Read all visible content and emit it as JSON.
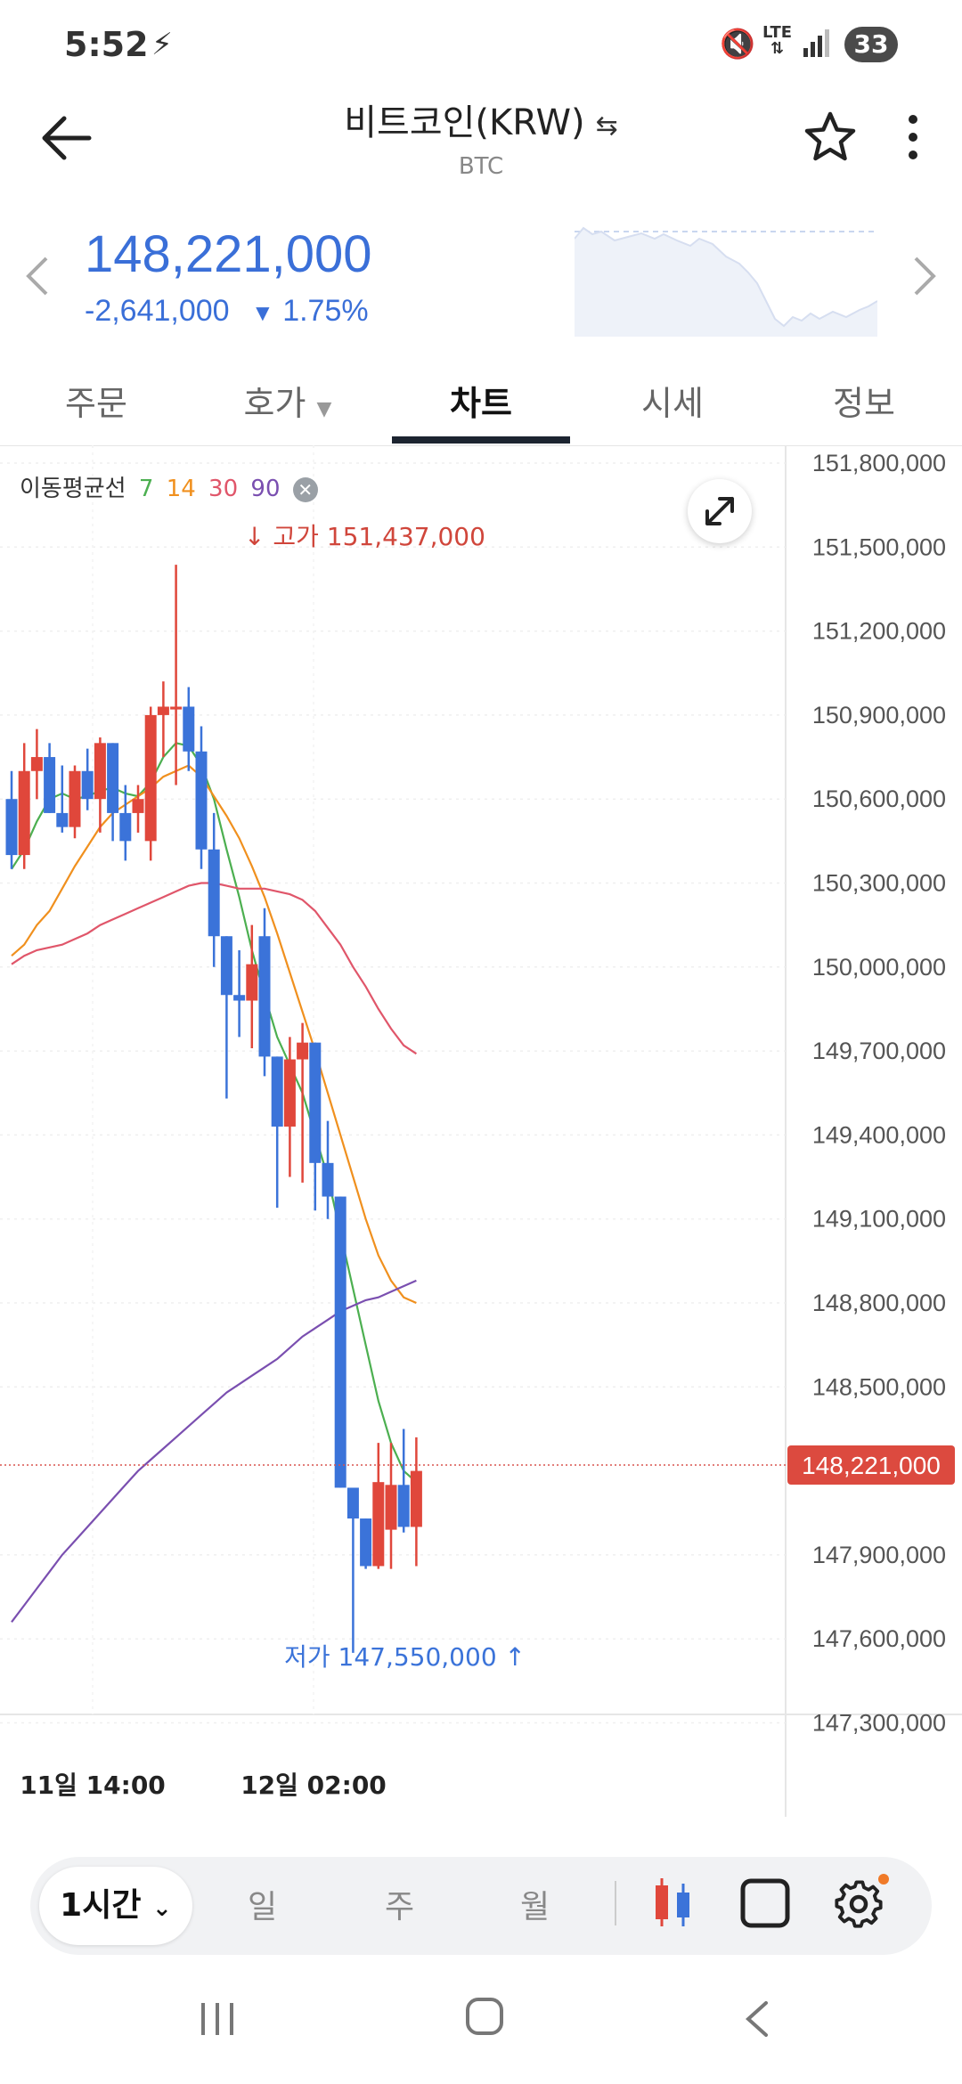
{
  "status_bar": {
    "time": "5:52",
    "network": "LTE",
    "battery": "33"
  },
  "header": {
    "title": "비트코인(KRW)",
    "subtitle": "BTC"
  },
  "price": {
    "current": "148,221,000",
    "change": "-2,641,000",
    "change_pct": "1.75%",
    "direction": "down",
    "color": "#3a6fd8"
  },
  "tabs": [
    {
      "label": "주문"
    },
    {
      "label": "호가"
    },
    {
      "label": "차트"
    },
    {
      "label": "시세"
    },
    {
      "label": "정보"
    }
  ],
  "active_tab": "차트",
  "chart": {
    "legend_label": "이동평균선",
    "ma_periods": [
      {
        "label": "7",
        "color": "#4caf50"
      },
      {
        "label": "14",
        "color": "#f0901e"
      },
      {
        "label": "30",
        "color": "#e0566a"
      },
      {
        "label": "90",
        "color": "#7a4fb0"
      }
    ],
    "high_label": "고가 151,437,000",
    "low_label": "저가 147,550,000",
    "current_price_label": "148,221,000",
    "y_ticks": [
      "151,800,000",
      "151,500,000",
      "151,200,000",
      "150,900,000",
      "150,600,000",
      "150,300,000",
      "150,000,000",
      "149,700,000",
      "149,400,000",
      "149,100,000",
      "148,800,000",
      "148,500,000",
      "147,900,000",
      "147,600,000",
      "147,300,000"
    ],
    "x_ticks": [
      "11일 14:00",
      "12일 02:00"
    ],
    "up_color": "#e0473b",
    "down_color": "#3b73d9"
  },
  "chart_data": {
    "type": "candlestick",
    "ylim": [
      147150000,
      151900000
    ],
    "candles": [
      {
        "o": 150600000,
        "h": 150700000,
        "l": 150350000,
        "c": 150400000
      },
      {
        "o": 150400000,
        "h": 150800000,
        "l": 150350000,
        "c": 150700000
      },
      {
        "o": 150700000,
        "h": 150850000,
        "l": 150600000,
        "c": 150750000
      },
      {
        "o": 150750000,
        "h": 150800000,
        "l": 150550000,
        "c": 150550000
      },
      {
        "o": 150550000,
        "h": 150720000,
        "l": 150480000,
        "c": 150500000
      },
      {
        "o": 150500000,
        "h": 150720000,
        "l": 150460000,
        "c": 150700000
      },
      {
        "o": 150700000,
        "h": 150780000,
        "l": 150560000,
        "c": 150600000
      },
      {
        "o": 150600000,
        "h": 150820000,
        "l": 150480000,
        "c": 150800000
      },
      {
        "o": 150800000,
        "h": 150800000,
        "l": 150450000,
        "c": 150550000
      },
      {
        "o": 150550000,
        "h": 150650000,
        "l": 150380000,
        "c": 150450000
      },
      {
        "o": 150550000,
        "h": 150650000,
        "l": 150480000,
        "c": 150600000
      },
      {
        "o": 150450000,
        "h": 150930000,
        "l": 150380000,
        "c": 150900000
      },
      {
        "o": 150900000,
        "h": 151020000,
        "l": 150750000,
        "c": 150930000
      },
      {
        "o": 150920000,
        "h": 151437000,
        "l": 150650000,
        "c": 150930000
      },
      {
        "o": 150930000,
        "h": 151000000,
        "l": 150700000,
        "c": 150770000
      },
      {
        "o": 150770000,
        "h": 150860000,
        "l": 150350000,
        "c": 150420000
      },
      {
        "o": 150420000,
        "h": 150550000,
        "l": 150000000,
        "c": 150110000
      },
      {
        "o": 150110000,
        "h": 150110000,
        "l": 149530000,
        "c": 149900000
      },
      {
        "o": 149900000,
        "h": 150060000,
        "l": 149750000,
        "c": 149880000
      },
      {
        "o": 149880000,
        "h": 150150000,
        "l": 149710000,
        "c": 150010000
      },
      {
        "o": 150110000,
        "h": 150210000,
        "l": 149610000,
        "c": 149680000
      },
      {
        "o": 149680000,
        "h": 149680000,
        "l": 149140000,
        "c": 149430000
      },
      {
        "o": 149430000,
        "h": 149750000,
        "l": 149250000,
        "c": 149670000
      },
      {
        "o": 149670000,
        "h": 149800000,
        "l": 149230000,
        "c": 149730000
      },
      {
        "o": 149730000,
        "h": 149730000,
        "l": 149130000,
        "c": 149300000
      },
      {
        "o": 149300000,
        "h": 149450000,
        "l": 149100000,
        "c": 149180000
      },
      {
        "o": 149180000,
        "h": 149180000,
        "l": 148140000,
        "c": 148140000
      },
      {
        "o": 148140000,
        "h": 148140000,
        "l": 147550000,
        "c": 148030000
      },
      {
        "o": 148030000,
        "h": 148030000,
        "l": 147850000,
        "c": 147860000
      },
      {
        "o": 147860000,
        "h": 148300000,
        "l": 147850000,
        "c": 148160000
      },
      {
        "o": 147990000,
        "h": 148300000,
        "l": 147850000,
        "c": 148150000
      },
      {
        "o": 148150000,
        "h": 148350000,
        "l": 147980000,
        "c": 148000000
      },
      {
        "o": 148000000,
        "h": 148320000,
        "l": 147860000,
        "c": 148200000
      }
    ],
    "ma_lines": [
      {
        "name": "7",
        "points": [
          150350000,
          150420000,
          150520000,
          150600000,
          150620000,
          150600000,
          150610000,
          150630000,
          150640000,
          150620000,
          150610000,
          150660000,
          150750000,
          150800000,
          150790000,
          150720000,
          150600000,
          150420000,
          150250000,
          150060000,
          149900000,
          149750000,
          149650000,
          149550000,
          149400000,
          149250000,
          149050000,
          148850000,
          148650000,
          148450000,
          148300000,
          148200000,
          148160000
        ]
      },
      {
        "name": "14",
        "points": [
          150040000,
          150080000,
          150150000,
          150200000,
          150280000,
          150360000,
          150430000,
          150500000,
          150550000,
          150580000,
          150610000,
          150640000,
          150680000,
          150700000,
          150720000,
          150680000,
          150610000,
          150540000,
          150460000,
          150360000,
          150250000,
          150120000,
          149980000,
          149840000,
          149700000,
          149550000,
          149400000,
          149250000,
          149100000,
          148970000,
          148880000,
          148820000,
          148800000
        ]
      },
      {
        "name": "30",
        "points": [
          150010000,
          150040000,
          150060000,
          150070000,
          150080000,
          150100000,
          150120000,
          150150000,
          150170000,
          150190000,
          150210000,
          150230000,
          150250000,
          150270000,
          150290000,
          150300000,
          150300000,
          150290000,
          150280000,
          150280000,
          150280000,
          150270000,
          150260000,
          150240000,
          150200000,
          150140000,
          150080000,
          150000000,
          149930000,
          149850000,
          149780000,
          149720000,
          149690000
        ]
      },
      {
        "name": "90",
        "points": [
          147660000,
          147720000,
          147780000,
          147840000,
          147900000,
          147950000,
          148000000,
          148050000,
          148100000,
          148150000,
          148200000,
          148240000,
          148280000,
          148320000,
          148360000,
          148400000,
          148440000,
          148480000,
          148510000,
          148540000,
          148570000,
          148600000,
          148640000,
          148680000,
          148710000,
          148740000,
          148770000,
          148790000,
          148810000,
          148820000,
          148840000,
          148860000,
          148880000
        ]
      }
    ]
  },
  "toolbar": {
    "interval": "1시간",
    "day": "일",
    "week": "주",
    "month": "월"
  }
}
